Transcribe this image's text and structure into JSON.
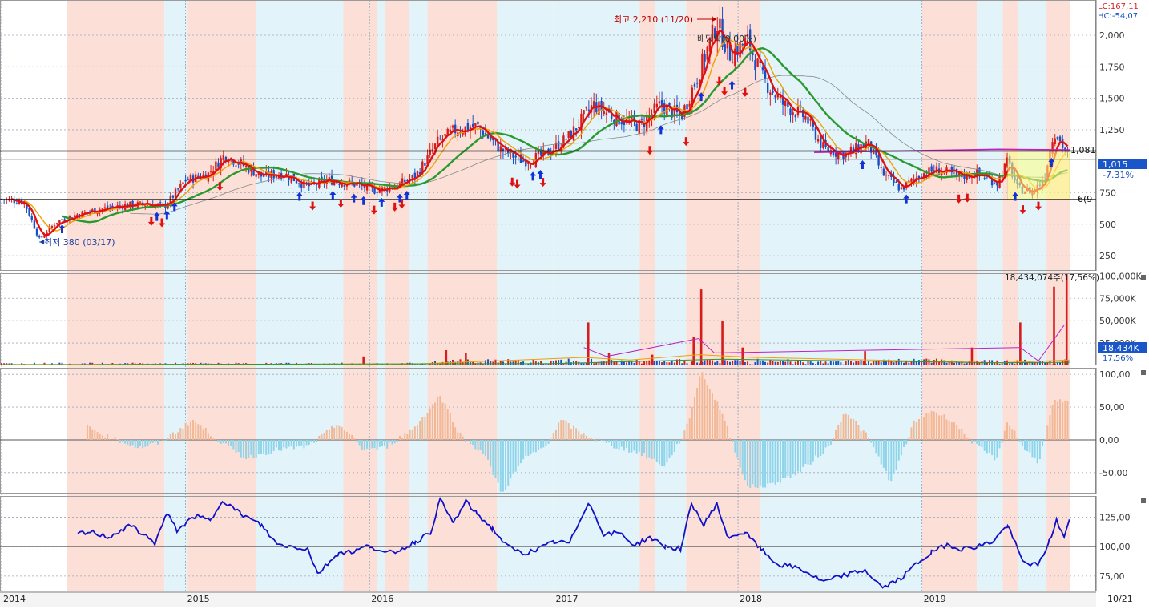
{
  "header": {
    "lc_label": "LC:167,11",
    "hc_label": "HC:-54,07"
  },
  "colors": {
    "red_band": "#fce0d8",
    "blue_band": "#e2f4fa",
    "up": "#d81c1c",
    "down": "#1a4fc4",
    "ma_fast": "#e01010",
    "ma_mid": "#f0a000",
    "ma_slow": "#2a9a30",
    "ma_long": "#888888",
    "ma_magenta": "#c020c0",
    "osc_pos": "#f2b896",
    "osc_neg": "#8ed4ea",
    "line_blue": "#1010c8"
  },
  "chart_data": [
    {
      "type": "candlestick",
      "panel": "price",
      "title": "",
      "yticks": [
        "2,000",
        "1,750",
        "1,500",
        "1,250",
        "750",
        "500",
        "250"
      ],
      "ytick_values": [
        2000,
        1750,
        1500,
        1250,
        750,
        500,
        250
      ],
      "ylim": [
        130,
        2280
      ],
      "xlim_date": [
        "2014-01-01",
        "2019-10-21"
      ],
      "annotations": {
        "high": {
          "label": "최고 2,210 (11/20)",
          "value": 2210,
          "date": "2017-11-20"
        },
        "low": {
          "label": "최저 380 (03/17)",
          "value": 380,
          "date": "2014-03-17"
        },
        "dividend": {
          "label": "배당락(0.00%)",
          "date": "2017-12-27"
        },
        "last_price": {
          "label": "1,015",
          "value": 1015
        },
        "change_pct": {
          "label": "-7.31%"
        },
        "resistance": {
          "label": "1,081",
          "value": 1081
        },
        "support": {
          "label": "6(9",
          "value": 695
        }
      },
      "price_path": [
        [
          "2014-01-02",
          700
        ],
        [
          "2014-02-15",
          680
        ],
        [
          "2014-03-17",
          380
        ],
        [
          "2014-04-20",
          520
        ],
        [
          "2014-06-01",
          580
        ],
        [
          "2014-07-15",
          620
        ],
        [
          "2014-09-01",
          650
        ],
        [
          "2014-10-20",
          660
        ],
        [
          "2014-11-20",
          640
        ],
        [
          "2015-01-01",
          850
        ],
        [
          "2015-02-15",
          900
        ],
        [
          "2015-03-20",
          1050
        ],
        [
          "2015-04-20",
          980
        ],
        [
          "2015-06-01",
          880
        ],
        [
          "2015-07-15",
          900
        ],
        [
          "2015-09-01",
          800
        ],
        [
          "2015-10-15",
          850
        ],
        [
          "2015-12-01",
          820
        ],
        [
          "2016-01-10",
          770
        ],
        [
          "2016-02-20",
          800
        ],
        [
          "2016-04-01",
          880
        ],
        [
          "2016-05-15",
          1150
        ],
        [
          "2016-06-20",
          1250
        ],
        [
          "2016-08-01",
          1280
        ],
        [
          "2016-09-15",
          1100
        ],
        [
          "2016-11-01",
          1000
        ],
        [
          "2016-12-15",
          1050
        ],
        [
          "2017-02-01",
          1200
        ],
        [
          "2017-03-20",
          1450
        ],
        [
          "2017-05-01",
          1350
        ],
        [
          "2017-06-20",
          1280
        ],
        [
          "2017-08-01",
          1450
        ],
        [
          "2017-09-10",
          1350
        ],
        [
          "2017-10-15",
          1700
        ],
        [
          "2017-11-20",
          2100
        ],
        [
          "2017-12-15",
          1850
        ],
        [
          "2018-01-20",
          1950
        ],
        [
          "2018-02-20",
          1650
        ],
        [
          "2018-04-01",
          1450
        ],
        [
          "2018-05-15",
          1350
        ],
        [
          "2018-06-20",
          1100
        ],
        [
          "2018-08-01",
          1050
        ],
        [
          "2018-09-15",
          1150
        ],
        [
          "2018-10-15",
          900
        ],
        [
          "2018-11-20",
          780
        ],
        [
          "2018-12-31",
          900
        ],
        [
          "2019-02-01",
          930
        ],
        [
          "2019-03-15",
          880
        ],
        [
          "2019-04-20",
          900
        ],
        [
          "2019-05-30",
          830
        ],
        [
          "2019-06-20",
          1000
        ],
        [
          "2019-07-10",
          780
        ],
        [
          "2019-08-10",
          760
        ],
        [
          "2019-09-01",
          870
        ],
        [
          "2019-09-20",
          1250
        ],
        [
          "2019-10-10",
          1100
        ],
        [
          "2019-10-21",
          1015
        ]
      ],
      "up_signals": [
        "2014-05-01",
        "2014-11-05",
        "2014-11-25",
        "2014-12-10",
        "2015-08-15",
        "2015-10-20",
        "2015-12-01",
        "2015-12-20",
        "2016-01-25",
        "2016-03-01",
        "2016-03-15",
        "2016-11-20",
        "2016-12-05",
        "2017-08-01",
        "2017-10-20",
        "2017-12-20",
        "2018-09-05",
        "2018-12-01",
        "2019-07-05",
        "2019-09-15"
      ],
      "down_signals": [
        "2014-10-25",
        "2014-11-15",
        "2015-03-10",
        "2015-09-10",
        "2015-11-05",
        "2016-01-10",
        "2016-02-20",
        "2016-03-05",
        "2016-10-10",
        "2016-10-20",
        "2016-12-10",
        "2017-07-10",
        "2017-09-20",
        "2017-11-25",
        "2017-12-05",
        "2018-01-15",
        "2019-03-15",
        "2019-04-01",
        "2019-07-20",
        "2019-08-20"
      ]
    },
    {
      "type": "bar",
      "panel": "volume",
      "yticks": [
        "100,000K",
        "75,000K",
        "50,000K",
        "25,000K"
      ],
      "ytick_values": [
        100000,
        75000,
        50000,
        25000
      ],
      "ylim": [
        0,
        103000
      ],
      "readout": "18,434,074주(17,56%)",
      "last_value_label": "18,434K",
      "last_pct_label": "17,56%",
      "spikes": [
        [
          "2015-12-20",
          10000
        ],
        [
          "2016-06-01",
          17000
        ],
        [
          "2016-07-10",
          14000
        ],
        [
          "2017-03-10",
          48000
        ],
        [
          "2017-04-20",
          14000
        ],
        [
          "2017-07-15",
          12000
        ],
        [
          "2017-10-05",
          32000
        ],
        [
          "2017-10-20",
          85000
        ],
        [
          "2017-12-01",
          50000
        ],
        [
          "2018-01-10",
          20000
        ],
        [
          "2018-09-10",
          16000
        ],
        [
          "2019-04-10",
          20000
        ],
        [
          "2019-07-15",
          48000
        ],
        [
          "2019-09-20",
          88000
        ],
        [
          "2019-10-15",
          102000
        ]
      ]
    },
    {
      "type": "bar",
      "panel": "oscillator",
      "yticks": [
        "100,00",
        "50,00",
        "0,00",
        "-50,00"
      ],
      "ytick_values": [
        100,
        50,
        0,
        -50
      ],
      "ylim": [
        -82,
        110
      ],
      "profile": [
        [
          "2014-06-20",
          20
        ],
        [
          "2014-08-01",
          5
        ],
        [
          "2014-10-01",
          -12
        ],
        [
          "2014-11-10",
          -5
        ],
        [
          "2015-01-15",
          30
        ],
        [
          "2015-03-15",
          -5
        ],
        [
          "2015-05-01",
          -28
        ],
        [
          "2015-07-01",
          -15
        ],
        [
          "2015-09-01",
          -10
        ],
        [
          "2015-11-01",
          25
        ],
        [
          "2015-12-20",
          -15
        ],
        [
          "2016-02-01",
          -12
        ],
        [
          "2016-04-01",
          20
        ],
        [
          "2016-05-20",
          68
        ],
        [
          "2016-07-01",
          5
        ],
        [
          "2016-08-15",
          -20
        ],
        [
          "2016-09-20",
          -82
        ],
        [
          "2016-11-01",
          -30
        ],
        [
          "2016-12-15",
          -10
        ],
        [
          "2017-01-15",
          30
        ],
        [
          "2017-03-01",
          8
        ],
        [
          "2017-05-01",
          -10
        ],
        [
          "2017-06-20",
          -20
        ],
        [
          "2017-08-10",
          -40
        ],
        [
          "2017-09-20",
          15
        ],
        [
          "2017-10-20",
          105
        ],
        [
          "2017-12-01",
          40
        ],
        [
          "2018-01-20",
          -72
        ],
        [
          "2018-03-01",
          -70
        ],
        [
          "2018-05-01",
          -50
        ],
        [
          "2018-07-01",
          -10
        ],
        [
          "2018-08-01",
          45
        ],
        [
          "2018-09-15",
          5
        ],
        [
          "2018-11-01",
          -65
        ],
        [
          "2018-12-15",
          25
        ],
        [
          "2019-01-20",
          45
        ],
        [
          "2019-03-01",
          30
        ],
        [
          "2019-04-20",
          -10
        ],
        [
          "2019-05-30",
          -30
        ],
        [
          "2019-06-20",
          30
        ],
        [
          "2019-07-20",
          -10
        ],
        [
          "2019-08-20",
          -35
        ],
        [
          "2019-09-20",
          60
        ],
        [
          "2019-10-21",
          55
        ]
      ]
    },
    {
      "type": "line",
      "panel": "indicator",
      "yticks": [
        "125,00",
        "100,00",
        "75,00"
      ],
      "ytick_values": [
        125,
        100,
        75
      ],
      "ylim": [
        62,
        143
      ],
      "series": [
        {
          "values": [
            [
              "2014-06-01",
              111
            ],
            [
              "2014-07-01",
              112
            ],
            [
              "2014-08-01",
              108
            ],
            [
              "2014-09-15",
              118
            ],
            [
              "2014-11-01",
              103
            ],
            [
              "2014-11-25",
              128
            ],
            [
              "2014-12-15",
              114
            ],
            [
              "2015-01-20",
              126
            ],
            [
              "2015-02-20",
              122
            ],
            [
              "2015-03-15",
              140
            ],
            [
              "2015-04-20",
              128
            ],
            [
              "2015-06-01",
              118
            ],
            [
              "2015-07-01",
              102
            ],
            [
              "2015-08-01",
              100
            ],
            [
              "2015-09-01",
              98
            ],
            [
              "2015-09-20",
              77
            ],
            [
              "2015-11-01",
              95
            ],
            [
              "2015-12-01",
              96
            ],
            [
              "2016-01-01",
              101
            ],
            [
              "2016-02-01",
              94
            ],
            [
              "2016-03-01",
              97
            ],
            [
              "2016-04-01",
              104
            ],
            [
              "2016-05-01",
              112
            ],
            [
              "2016-05-20",
              140
            ],
            [
              "2016-06-15",
              120
            ],
            [
              "2016-07-10",
              138
            ],
            [
              "2016-08-01",
              128
            ],
            [
              "2016-09-01",
              115
            ],
            [
              "2016-10-01",
              100
            ],
            [
              "2016-11-01",
              94
            ],
            [
              "2016-12-01",
              98
            ],
            [
              "2017-01-01",
              104
            ],
            [
              "2017-02-01",
              103
            ],
            [
              "2017-03-10",
              138
            ],
            [
              "2017-04-10",
              110
            ],
            [
              "2017-05-10",
              112
            ],
            [
              "2017-06-10",
              101
            ],
            [
              "2017-07-10",
              108
            ],
            [
              "2017-08-10",
              100
            ],
            [
              "2017-09-10",
              98
            ],
            [
              "2017-10-01",
              137
            ],
            [
              "2017-10-25",
              118
            ],
            [
              "2017-11-20",
              137
            ],
            [
              "2017-12-10",
              108
            ],
            [
              "2018-01-15",
              112
            ],
            [
              "2018-02-15",
              98
            ],
            [
              "2018-03-20",
              85
            ],
            [
              "2018-05-01",
              82
            ],
            [
              "2018-06-20",
              70
            ],
            [
              "2018-08-01",
              76
            ],
            [
              "2018-09-10",
              80
            ],
            [
              "2018-10-15",
              65
            ],
            [
              "2018-11-20",
              73
            ],
            [
              "2018-12-20",
              85
            ],
            [
              "2019-01-20",
              95
            ],
            [
              "2019-02-20",
              102
            ],
            [
              "2019-03-20",
              98
            ],
            [
              "2019-04-20",
              100
            ],
            [
              "2019-05-20",
              104
            ],
            [
              "2019-06-20",
              118
            ],
            [
              "2019-07-20",
              87
            ],
            [
              "2019-08-20",
              84
            ],
            [
              "2019-09-10",
              104
            ],
            [
              "2019-09-25",
              122
            ],
            [
              "2019-10-10",
              108
            ],
            [
              "2019-10-21",
              122
            ]
          ]
        }
      ]
    }
  ],
  "xaxis": {
    "ticks": [
      {
        "label": "2014",
        "date": "2014-01-01"
      },
      {
        "label": "2015",
        "date": "2015-01-01"
      },
      {
        "label": "2016",
        "date": "2016-01-01"
      },
      {
        "label": "2017",
        "date": "2017-01-01"
      },
      {
        "label": "2018",
        "date": "2018-01-01"
      },
      {
        "label": "2019",
        "date": "2019-01-01"
      }
    ],
    "end_label": "10/21"
  },
  "bands": [
    {
      "from": "2014-05-10",
      "to": "2014-11-20",
      "kind": "red"
    },
    {
      "from": "2014-11-20",
      "to": "2015-01-05",
      "kind": "blue"
    },
    {
      "from": "2015-01-05",
      "to": "2015-05-20",
      "kind": "red"
    },
    {
      "from": "2015-05-20",
      "to": "2015-11-10",
      "kind": "blue"
    },
    {
      "from": "2015-11-10",
      "to": "2016-01-15",
      "kind": "red"
    },
    {
      "from": "2016-01-15",
      "to": "2016-02-01",
      "kind": "blue"
    },
    {
      "from": "2016-02-01",
      "to": "2016-03-20",
      "kind": "red"
    },
    {
      "from": "2016-03-20",
      "to": "2016-04-25",
      "kind": "blue"
    },
    {
      "from": "2016-04-25",
      "to": "2016-09-10",
      "kind": "red"
    },
    {
      "from": "2016-09-10",
      "to": "2016-12-31",
      "kind": "blue"
    },
    {
      "from": "2016-12-31",
      "to": "2017-06-20",
      "kind": "blue"
    },
    {
      "from": "2017-06-20",
      "to": "2017-07-20",
      "kind": "red"
    },
    {
      "from": "2017-07-20",
      "to": "2017-09-20",
      "kind": "blue"
    },
    {
      "from": "2017-09-20",
      "to": "2018-02-15",
      "kind": "red"
    },
    {
      "from": "2018-02-15",
      "to": "2019-01-01",
      "kind": "blue"
    },
    {
      "from": "2019-01-01",
      "to": "2019-04-20",
      "kind": "red"
    },
    {
      "from": "2019-04-20",
      "to": "2019-06-10",
      "kind": "blue"
    },
    {
      "from": "2019-06-10",
      "to": "2019-07-10",
      "kind": "red"
    },
    {
      "from": "2019-07-10",
      "to": "2019-09-05",
      "kind": "blue"
    },
    {
      "from": "2019-09-05",
      "to": "2019-10-21",
      "kind": "red"
    }
  ]
}
